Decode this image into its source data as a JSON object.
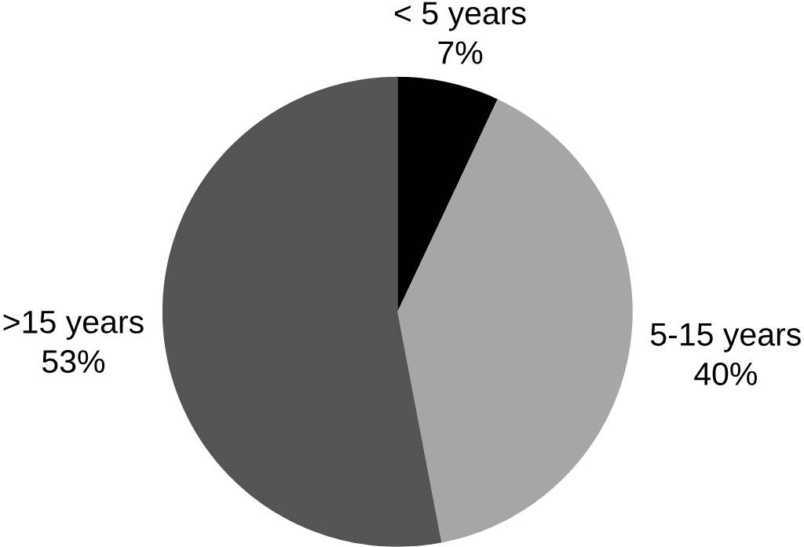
{
  "chart_data": {
    "type": "pie",
    "categories": [
      "< 5 years",
      "5-15 years",
      ">15 years"
    ],
    "values": [
      7,
      40,
      53
    ],
    "value_labels": [
      "7%",
      "40%",
      "53%"
    ],
    "colors": [
      "#000000",
      "#a6a6a6",
      "#545454"
    ]
  }
}
